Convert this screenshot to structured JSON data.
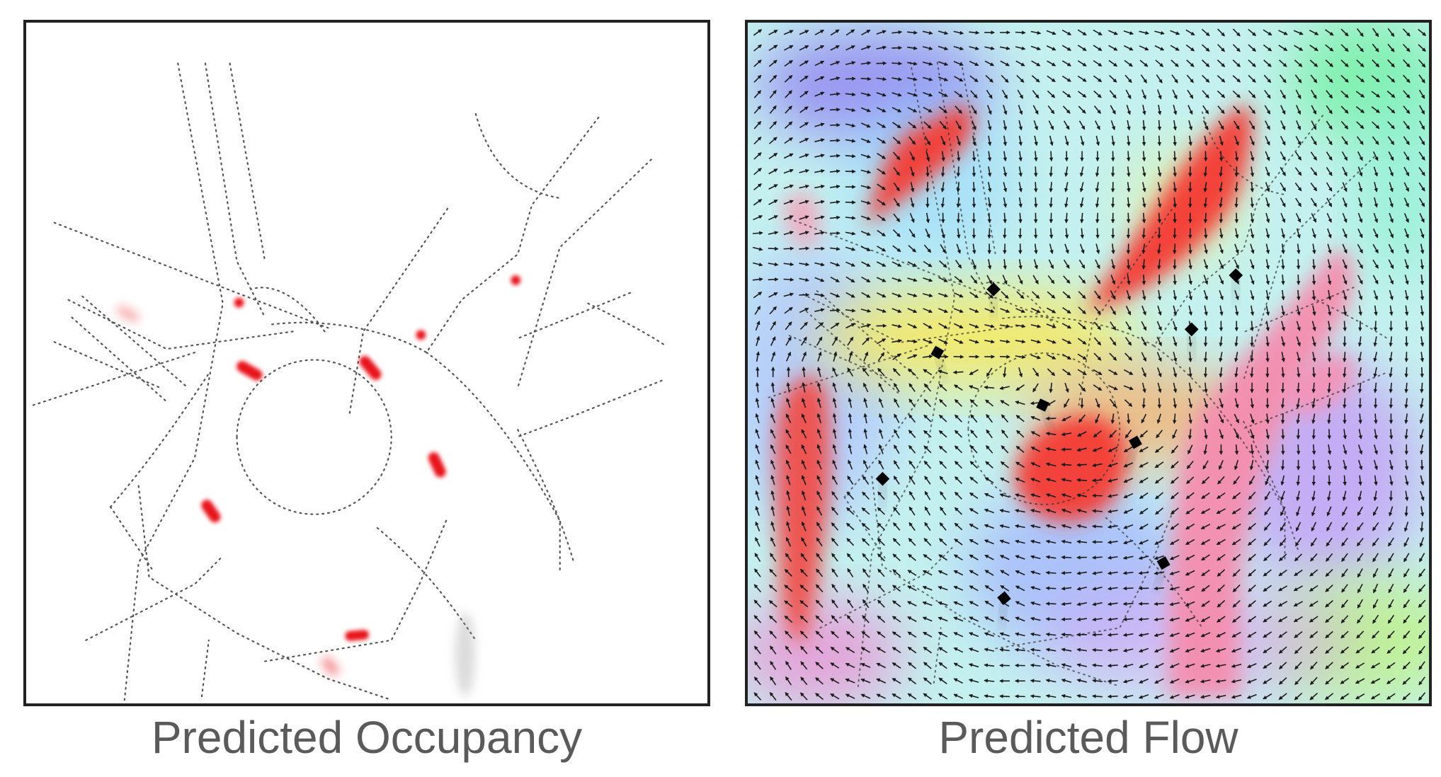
{
  "panels": {
    "occupancy": {
      "caption": "Predicted Occupancy"
    },
    "flow": {
      "caption": "Predicted Flow"
    }
  },
  "colors": {
    "frame": "#222222",
    "road": "#555555",
    "vehicle": "#e8141c",
    "caption": "#5a5a5a",
    "arrow": "#1a1a1a"
  },
  "icons": [
    "vehicle-blob-icon",
    "flow-arrow-icon"
  ]
}
